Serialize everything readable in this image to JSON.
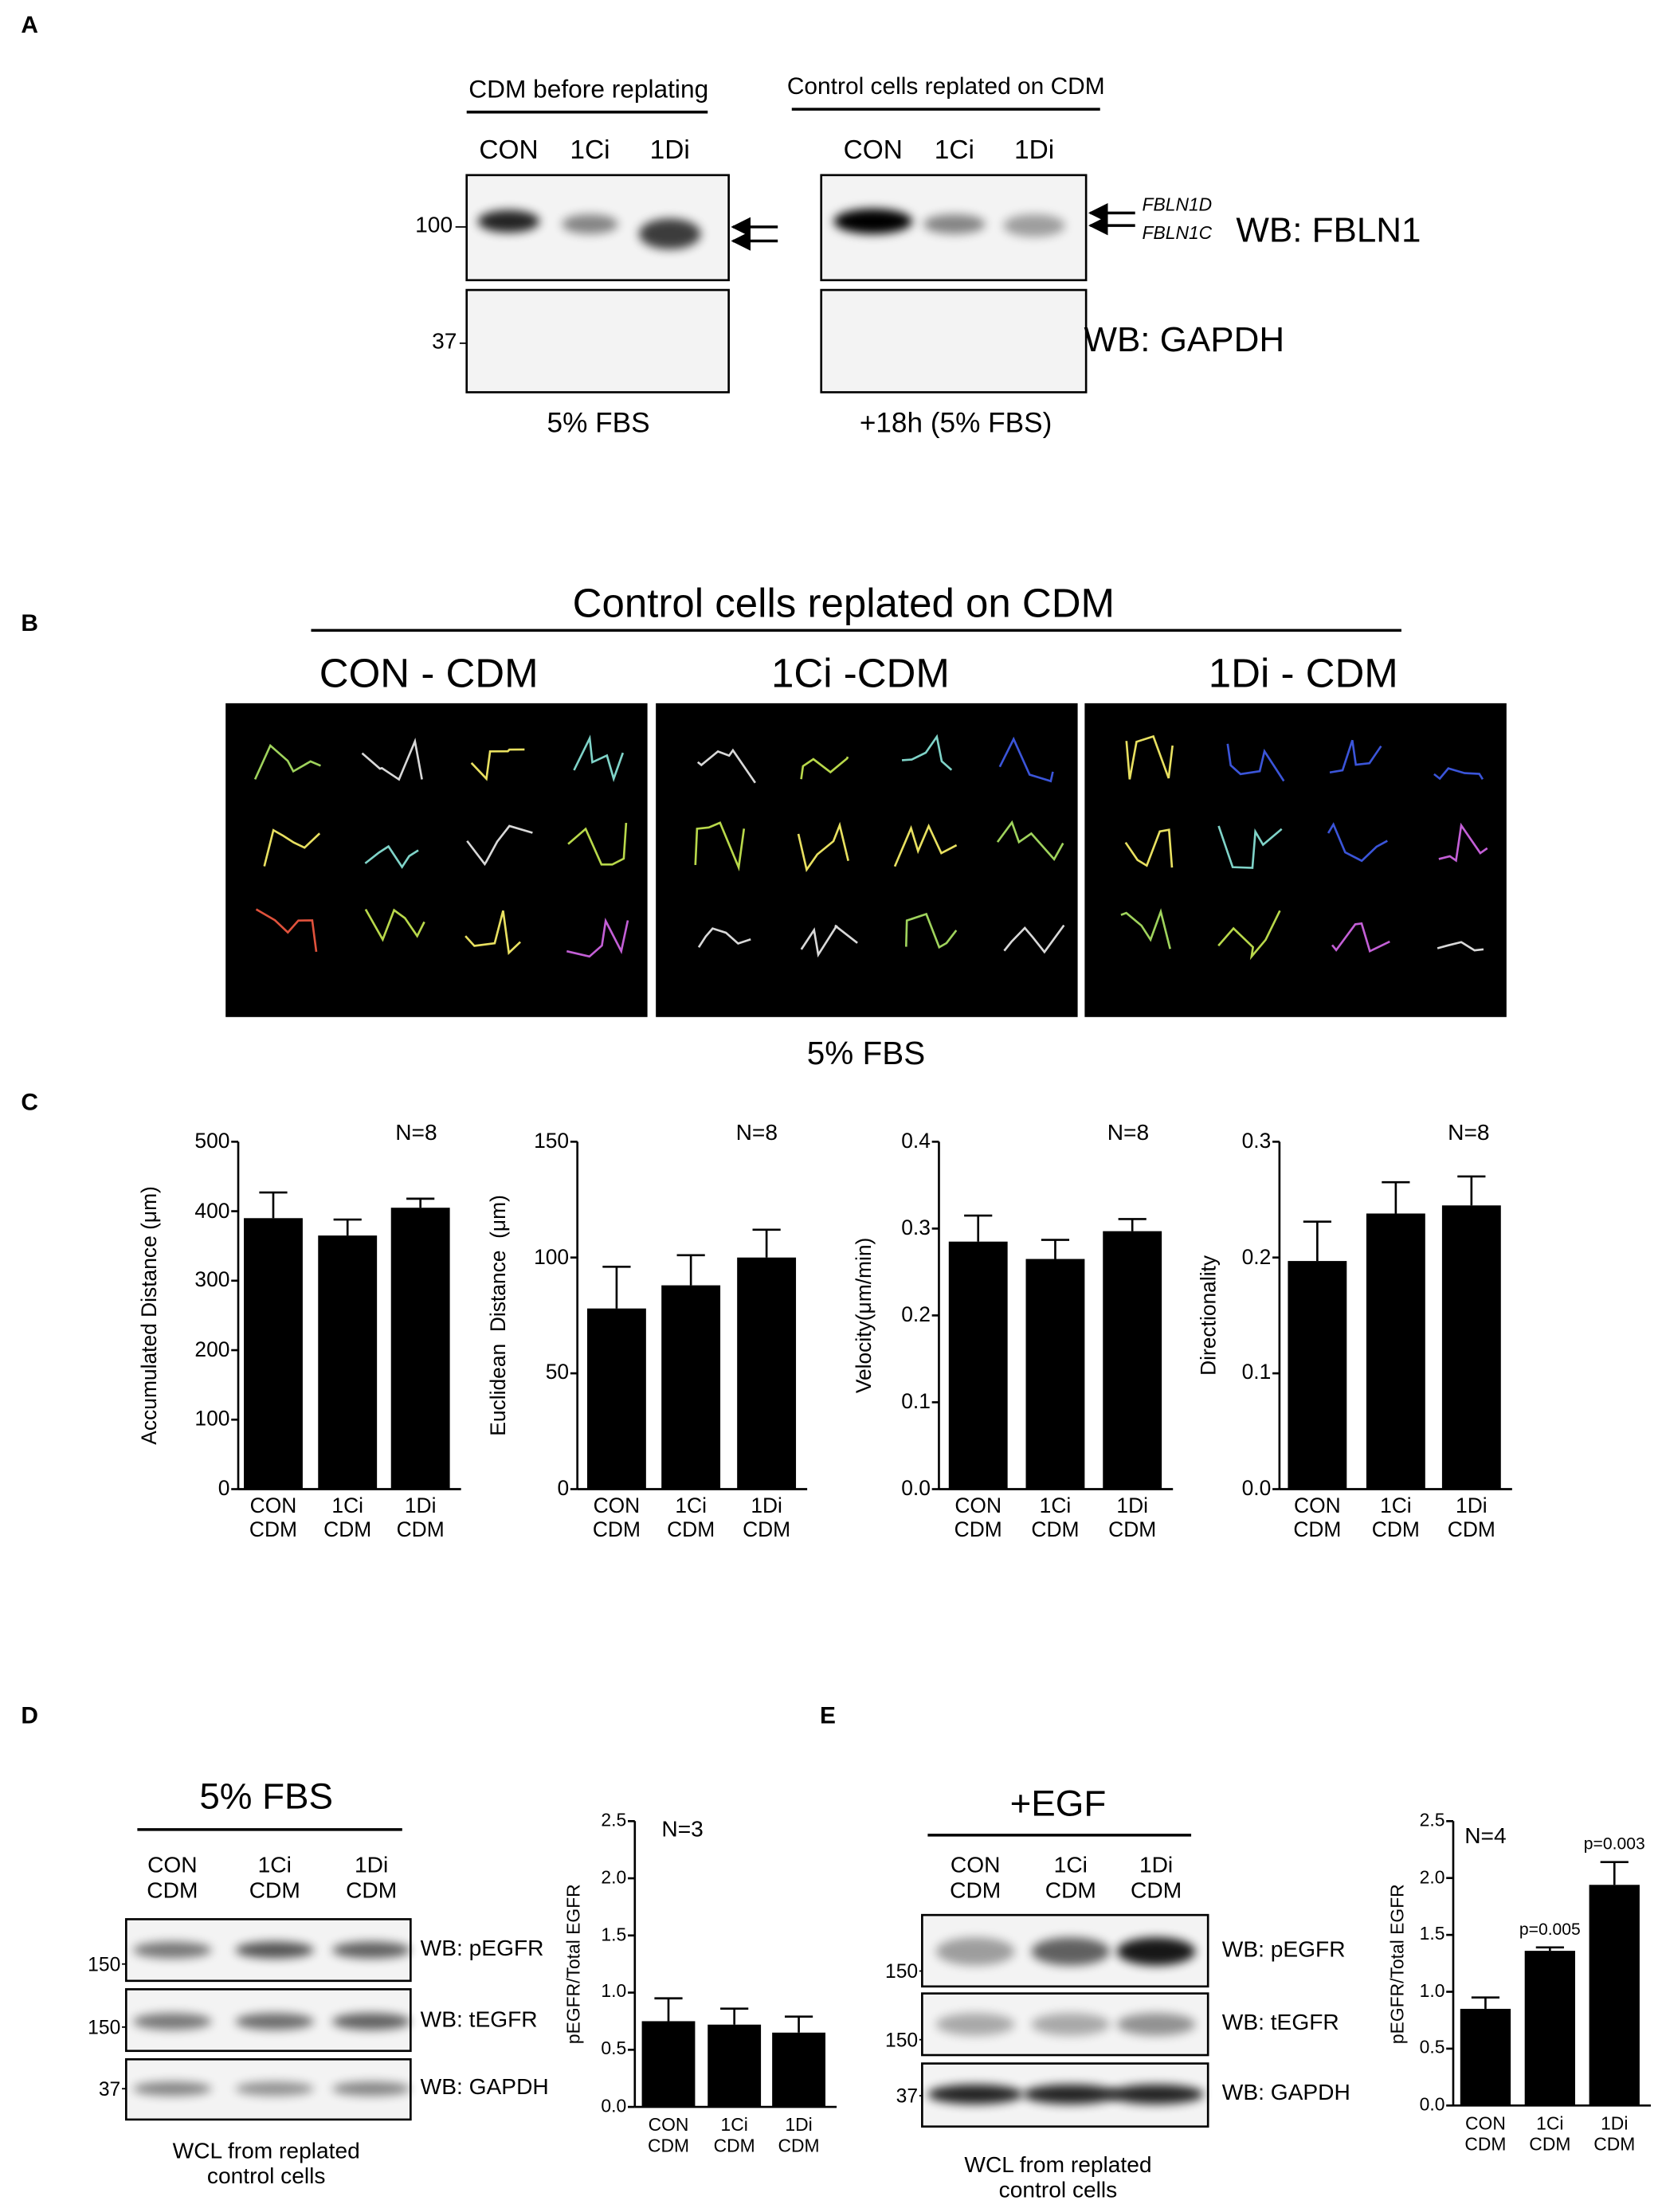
{
  "panel_labels": [
    "A",
    "B",
    "C",
    "D",
    "E"
  ],
  "panel_a": {
    "left_title": "CDM before replating",
    "right_title": "Control cells replated on CDM",
    "lanes": [
      "CON",
      "1Ci",
      "1Di"
    ],
    "markers": [
      100,
      37
    ],
    "band_labels": [
      "FBLN1D",
      "FBLN1C"
    ],
    "blots": [
      "WB: FBLN1",
      "WB: GAPDH"
    ],
    "conditions": [
      "5% FBS",
      "+18h (5% FBS)"
    ]
  },
  "panel_b": {
    "title": "Control cells replated on CDM",
    "groups": [
      "CON - CDM",
      "1Ci -CDM",
      "1Di - CDM"
    ],
    "condition": "5% FBS"
  },
  "panel_d": {
    "condition": "5% FBS",
    "lanes": [
      "CON\nCDM",
      "1Ci\nCDM",
      "1Di\nCDM"
    ],
    "markers": [
      150,
      150,
      37
    ],
    "blots": [
      "WB: pEGFR",
      "WB: tEGFR",
      "WB: GAPDH"
    ],
    "caption": "WCL from replated\ncontrol cells"
  },
  "panel_e": {
    "treatment": "+EGF",
    "lanes": [
      "CON\nCDM",
      "1Ci\nCDM",
      "1Di\nCDM"
    ],
    "markers": [
      150,
      150,
      37
    ],
    "blots": [
      "WB: pEGFR",
      "WB: tEGFR",
      "WB: GAPDH"
    ],
    "caption": "WCL from replated\ncontrol cells"
  },
  "chart_data": [
    {
      "type": "bar",
      "y_label": "Accumulated Distance (μm)",
      "note": "N=8",
      "color": "#000000",
      "categories": [
        "CON\nCDM",
        "1Ci\nCDM",
        "1Di\nCDM"
      ],
      "values": [
        390,
        365,
        405
      ],
      "errors": [
        37,
        23,
        13
      ],
      "ylim": [
        0,
        500
      ],
      "yticks": [
        0,
        100,
        200,
        300,
        400,
        500
      ]
    },
    {
      "type": "bar",
      "y_label": "Euclidean  Distance  (μm)",
      "note": "N=8",
      "color": "#000000",
      "categories": [
        "CON\nCDM",
        "1Ci\nCDM",
        "1Di\nCDM"
      ],
      "values": [
        78,
        88,
        100
      ],
      "errors": [
        18,
        13,
        12
      ],
      "ylim": [
        0,
        150
      ],
      "yticks": [
        0,
        50,
        100,
        150
      ]
    },
    {
      "type": "bar",
      "y_label": "Velocity(μm/min)",
      "note": "N=8",
      "color": "#000000",
      "categories": [
        "CON\nCDM",
        "1Ci\nCDM",
        "1Di\nCDM"
      ],
      "values": [
        0.285,
        0.265,
        0.297
      ],
      "errors": [
        0.03,
        0.022,
        0.014
      ],
      "ylim": [
        0,
        0.4
      ],
      "yticks": [
        {
          "value": 0,
          "label": "0.0"
        },
        0.1,
        0.2,
        0.3,
        0.4
      ]
    },
    {
      "type": "bar",
      "y_label": "Directionality",
      "note": "N=8",
      "color": "#000000",
      "categories": [
        "CON\nCDM",
        "1Ci\nCDM",
        "1Di\nCDM"
      ],
      "values": [
        0.197,
        0.238,
        0.245
      ],
      "errors": [
        0.034,
        0.027,
        0.025
      ],
      "ylim": [
        0,
        0.3
      ],
      "yticks": [
        {
          "value": 0,
          "label": "0.0"
        },
        0.1,
        0.2,
        0.3
      ]
    },
    {
      "type": "bar",
      "y_label": "pEGFR/Total EGFR",
      "note": "N=3",
      "color": "#000000",
      "categories": [
        "CON\nCDM",
        "1Ci\nCDM",
        "1Di\nCDM"
      ],
      "values": [
        0.75,
        0.72,
        0.65
      ],
      "errors": [
        0.2,
        0.14,
        0.14
      ],
      "ylim": [
        0,
        2.5
      ],
      "yticks": [
        {
          "value": 0,
          "label": "0.0"
        },
        0.5,
        {
          "value": 1,
          "label": "1.0"
        },
        1.5,
        {
          "value": 2,
          "label": "2.0"
        },
        2.5
      ]
    },
    {
      "type": "bar",
      "y_label": "pEGFR/Total EGFR",
      "note": "N=4",
      "color": "#000000",
      "categories": [
        "CON\nCDM",
        "1Ci\nCDM",
        "1Di\nCDM"
      ],
      "values": [
        0.85,
        1.36,
        1.94
      ],
      "errors": [
        0.1,
        0.03,
        0.2
      ],
      "ylim": [
        0,
        2.5
      ],
      "yticks": [
        {
          "value": 0,
          "label": "0.0"
        },
        0.5,
        {
          "value": 1,
          "label": "1.0"
        },
        1.5,
        {
          "value": 2,
          "label": "2.0"
        },
        2.5
      ],
      "annotations": [
        {
          "category": "1Ci\nCDM",
          "text": "p=0.005"
        },
        {
          "category": "1Di\nCDM",
          "text": "p=0.003"
        }
      ]
    }
  ]
}
